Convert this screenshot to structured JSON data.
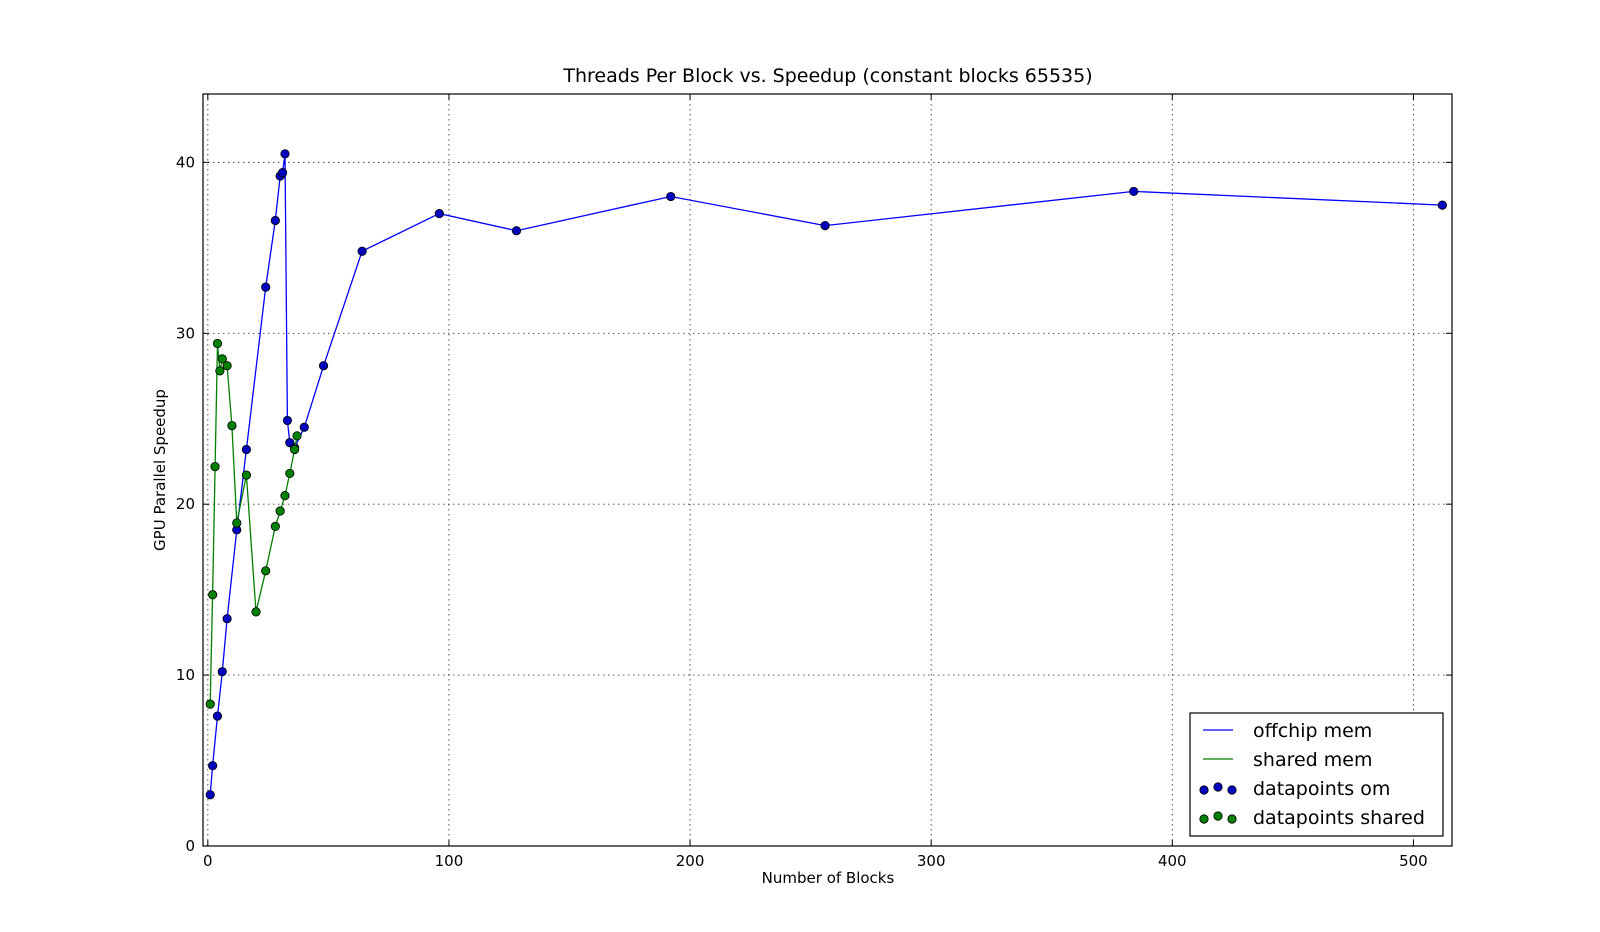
{
  "chart_data": {
    "type": "line",
    "title": "Threads Per Block vs. Speedup (constant blocks 65535)",
    "xlabel": "Number of Blocks",
    "ylabel": "GPU Parallel Speedup",
    "xlim": [
      -2,
      516
    ],
    "ylim": [
      0,
      44
    ],
    "xticks": [
      0,
      100,
      200,
      300,
      400,
      500
    ],
    "yticks": [
      0,
      10,
      20,
      30,
      40
    ],
    "grid": true,
    "legend_position": "lower-right",
    "series": [
      {
        "name": "offchip mem",
        "color": "#0000ff",
        "x": [
          1,
          2,
          4,
          6,
          8,
          12,
          16,
          24,
          28,
          30,
          31,
          32,
          33,
          34,
          36,
          40,
          48,
          64,
          96,
          128,
          192,
          256,
          384,
          512
        ],
        "y": [
          3.0,
          4.7,
          7.6,
          10.2,
          13.3,
          18.5,
          23.2,
          32.7,
          36.6,
          39.2,
          39.4,
          40.5,
          24.9,
          23.6,
          23.3,
          24.5,
          28.1,
          34.8,
          37.0,
          36.0,
          38.0,
          36.3,
          38.3,
          37.5
        ]
      },
      {
        "name": "shared mem",
        "color": "#008000",
        "x": [
          1,
          2,
          3,
          4,
          5,
          6,
          8,
          10,
          12,
          16,
          20,
          24,
          28,
          30,
          32,
          34,
          36,
          37
        ],
        "y": [
          8.3,
          14.7,
          22.2,
          29.4,
          27.8,
          28.5,
          28.1,
          24.6,
          18.9,
          21.7,
          13.7,
          16.1,
          18.7,
          19.6,
          20.5,
          21.8,
          23.2,
          24.0
        ]
      }
    ],
    "legend": [
      {
        "label": "offchip mem",
        "kind": "line",
        "color": "#0000ff"
      },
      {
        "label": "shared mem",
        "kind": "line",
        "color": "#008000"
      },
      {
        "label": "datapoints om",
        "kind": "markers",
        "color": "#0000bf"
      },
      {
        "label": "datapoints shared",
        "kind": "markers",
        "color": "#008000"
      }
    ]
  }
}
